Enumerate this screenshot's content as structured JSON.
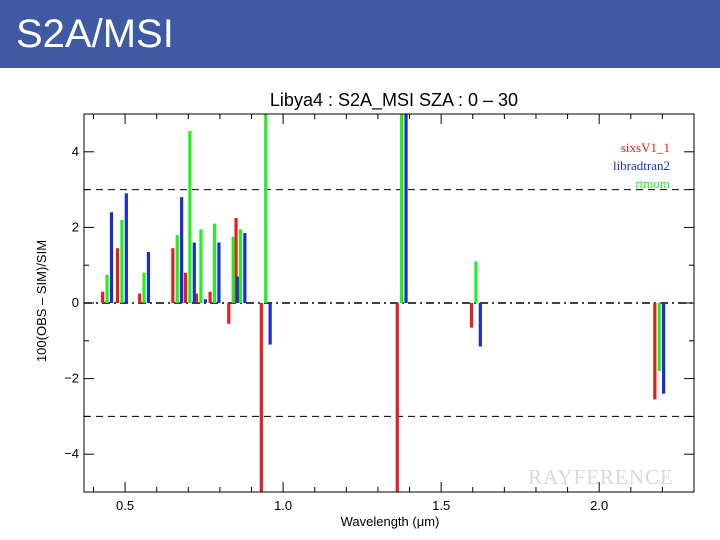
{
  "slide": {
    "title": "S2A/MSI"
  },
  "watermark": "RAYFERENCE",
  "chart_data": {
    "type": "bar",
    "title": "Libya4 : S2A_MSI SZA : 0 – 30",
    "xlabel": "Wavelength (μm)",
    "ylabel": "100(OBS – SIM)/SIM",
    "xlim": [
      0.37,
      2.3
    ],
    "ylim": [
      -5,
      5
    ],
    "xticks": [
      0.5,
      1.0,
      1.5,
      2.0
    ],
    "xtick_labels": [
      "0.5",
      "1.0",
      "1.5",
      "2.0"
    ],
    "yticks": [
      -4,
      -2,
      0,
      2,
      4
    ],
    "ytick_labels": [
      "−4",
      "−2",
      "0",
      "2",
      "4"
    ],
    "reference_lines": [
      3,
      -3
    ],
    "grid": false,
    "legend_position": "top-right",
    "wavelengths": [
      0.443,
      0.49,
      0.56,
      0.665,
      0.705,
      0.74,
      0.783,
      0.842,
      0.865,
      0.945,
      1.375,
      1.61,
      2.19
    ],
    "series": [
      {
        "name": "sixsV1_1",
        "color": "#e02020",
        "values": [
          0.3,
          1.45,
          0.25,
          1.45,
          0.8,
          0.25,
          0.3,
          -0.55,
          2.25,
          -5.2,
          -5.2,
          -0.65,
          -2.55
        ]
      },
      {
        "name": "libradtran2",
        "color": "#1a2ecc",
        "values": [
          2.4,
          2.9,
          1.35,
          2.8,
          1.6,
          0.1,
          1.6,
          0.7,
          1.85,
          -1.1,
          5.2,
          -1.15,
          -2.4
        ]
      },
      {
        "name": "rtmom",
        "color": "#22ee22",
        "values": [
          0.75,
          2.2,
          0.8,
          1.8,
          4.55,
          1.95,
          2.1,
          1.75,
          1.95,
          5.2,
          5.2,
          1.1,
          -1.8
        ]
      }
    ]
  }
}
